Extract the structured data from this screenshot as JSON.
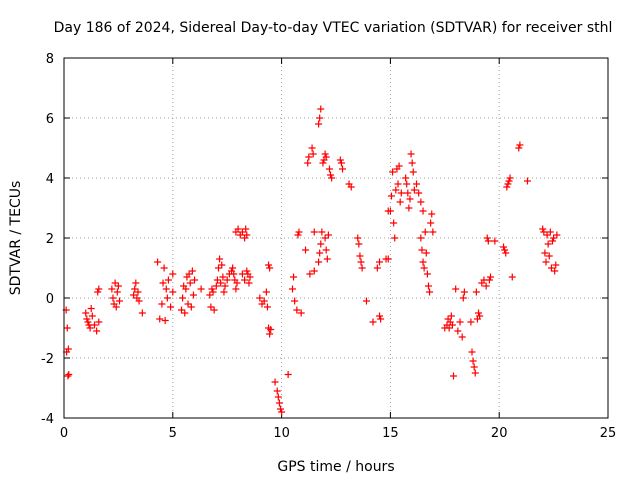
{
  "chart_data": {
    "type": "scatter",
    "title": "Day 186 of 2024, Sidereal Day-to-day VTEC variation (SDTVAR) for receiver sthl",
    "xlabel": "GPS time / hours",
    "ylabel": "SDTVAR / TECUs",
    "xlim": [
      0,
      25
    ],
    "ylim": [
      -4,
      8
    ],
    "x_ticks": [
      0,
      5,
      10,
      15,
      20,
      25
    ],
    "x_tick_labels": [
      "0",
      "5",
      "10",
      "15",
      "20",
      "25"
    ],
    "y_ticks": [
      -4,
      -2,
      0,
      2,
      4,
      6,
      8
    ],
    "y_tick_labels": [
      "-4",
      "-2",
      "0",
      "2",
      "4",
      "6",
      "8"
    ],
    "grid": true,
    "marker": "plus",
    "series": [
      {
        "name": "SDTVAR",
        "color": "#ff0000",
        "points": [
          [
            0.1,
            -0.4
          ],
          [
            0.15,
            -1.0
          ],
          [
            0.2,
            -1.7
          ],
          [
            0.12,
            -1.8
          ],
          [
            0.18,
            -2.6
          ],
          [
            0.22,
            -2.55
          ],
          [
            1.0,
            -0.5
          ],
          [
            1.05,
            -0.7
          ],
          [
            1.1,
            -0.8
          ],
          [
            1.15,
            -0.9
          ],
          [
            1.2,
            -1.0
          ],
          [
            1.25,
            -0.35
          ],
          [
            1.3,
            -0.6
          ],
          [
            1.4,
            -0.9
          ],
          [
            1.5,
            -1.1
          ],
          [
            1.55,
            0.2
          ],
          [
            1.6,
            0.3
          ],
          [
            1.6,
            -0.8
          ],
          [
            2.2,
            0.3
          ],
          [
            2.25,
            0.0
          ],
          [
            2.3,
            -0.2
          ],
          [
            2.35,
            0.5
          ],
          [
            2.4,
            -0.3
          ],
          [
            2.45,
            0.2
          ],
          [
            2.5,
            0.4
          ],
          [
            2.55,
            -0.1
          ],
          [
            3.2,
            0.1
          ],
          [
            3.25,
            0.3
          ],
          [
            3.3,
            0.5
          ],
          [
            3.35,
            0.0
          ],
          [
            3.4,
            0.2
          ],
          [
            3.45,
            -0.1
          ],
          [
            3.6,
            -0.5
          ],
          [
            4.3,
            1.2
          ],
          [
            4.4,
            -0.7
          ],
          [
            4.5,
            -0.2
          ],
          [
            4.55,
            0.5
          ],
          [
            4.6,
            1.0
          ],
          [
            4.65,
            -0.75
          ],
          [
            4.7,
            0.3
          ],
          [
            4.75,
            0.0
          ],
          [
            4.8,
            0.6
          ],
          [
            4.9,
            -0.3
          ],
          [
            5.0,
            0.8
          ],
          [
            5.0,
            0.2
          ],
          [
            5.4,
            -0.4
          ],
          [
            5.45,
            0.0
          ],
          [
            5.5,
            0.4
          ],
          [
            5.55,
            -0.5
          ],
          [
            5.6,
            0.3
          ],
          [
            5.65,
            0.7
          ],
          [
            5.7,
            -0.2
          ],
          [
            5.75,
            0.8
          ],
          [
            5.8,
            0.5
          ],
          [
            5.85,
            -0.3
          ],
          [
            5.9,
            0.9
          ],
          [
            5.95,
            0.1
          ],
          [
            6.0,
            0.6
          ],
          [
            6.3,
            0.3
          ],
          [
            6.7,
            0.1
          ],
          [
            6.75,
            -0.3
          ],
          [
            6.8,
            0.3
          ],
          [
            6.85,
            0.2
          ],
          [
            6.9,
            -0.4
          ],
          [
            7.0,
            0.4
          ],
          [
            7.05,
            0.6
          ],
          [
            7.1,
            1.0
          ],
          [
            7.15,
            1.3
          ],
          [
            7.2,
            0.5
          ],
          [
            7.25,
            1.1
          ],
          [
            7.3,
            0.7
          ],
          [
            7.35,
            0.2
          ],
          [
            7.4,
            0.4
          ],
          [
            7.5,
            0.6
          ],
          [
            7.6,
            0.8
          ],
          [
            7.7,
            0.9
          ],
          [
            7.75,
            1.0
          ],
          [
            7.8,
            0.8
          ],
          [
            7.85,
            0.6
          ],
          [
            7.9,
            0.3
          ],
          [
            7.95,
            0.5
          ],
          [
            7.9,
            2.2
          ],
          [
            8.0,
            2.3
          ],
          [
            8.1,
            2.1
          ],
          [
            8.2,
            2.2
          ],
          [
            8.3,
            2.0
          ],
          [
            8.35,
            2.3
          ],
          [
            8.4,
            2.1
          ],
          [
            8.45,
            0.8
          ],
          [
            8.5,
            0.5
          ],
          [
            8.55,
            0.7
          ],
          [
            8.2,
            0.8
          ],
          [
            8.3,
            0.6
          ],
          [
            8.4,
            0.9
          ],
          [
            9.0,
            0.0
          ],
          [
            9.1,
            -0.2
          ],
          [
            9.2,
            -0.1
          ],
          [
            9.3,
            0.2
          ],
          [
            9.35,
            -0.3
          ],
          [
            9.4,
            1.1
          ],
          [
            9.45,
            1.0
          ],
          [
            9.4,
            -1.0
          ],
          [
            9.45,
            -1.2
          ],
          [
            9.5,
            -1.05
          ],
          [
            9.7,
            -2.8
          ],
          [
            9.8,
            -3.1
          ],
          [
            9.85,
            -3.3
          ],
          [
            9.9,
            -3.5
          ],
          [
            9.95,
            -3.7
          ],
          [
            10.0,
            -3.8
          ],
          [
            10.3,
            -2.55
          ],
          [
            10.5,
            0.3
          ],
          [
            10.55,
            0.7
          ],
          [
            10.6,
            -0.1
          ],
          [
            10.7,
            -0.4
          ],
          [
            10.75,
            2.1
          ],
          [
            10.8,
            2.2
          ],
          [
            10.9,
            -0.5
          ],
          [
            11.1,
            1.6
          ],
          [
            11.2,
            4.5
          ],
          [
            11.25,
            4.7
          ],
          [
            11.3,
            0.8
          ],
          [
            11.4,
            5.0
          ],
          [
            11.45,
            4.8
          ],
          [
            11.5,
            2.2
          ],
          [
            11.5,
            0.9
          ],
          [
            11.7,
            5.8
          ],
          [
            11.75,
            6.0
          ],
          [
            11.8,
            6.3
          ],
          [
            11.7,
            1.2
          ],
          [
            11.75,
            1.5
          ],
          [
            11.8,
            1.8
          ],
          [
            11.85,
            2.2
          ],
          [
            11.9,
            4.5
          ],
          [
            11.95,
            4.6
          ],
          [
            12.0,
            4.8
          ],
          [
            12.05,
            4.7
          ],
          [
            12.0,
            2.0
          ],
          [
            12.05,
            1.6
          ],
          [
            12.1,
            1.3
          ],
          [
            12.15,
            2.1
          ],
          [
            12.2,
            4.3
          ],
          [
            12.25,
            4.1
          ],
          [
            12.3,
            4.0
          ],
          [
            12.7,
            4.6
          ],
          [
            12.75,
            4.5
          ],
          [
            12.8,
            4.3
          ],
          [
            13.1,
            3.8
          ],
          [
            13.2,
            3.7
          ],
          [
            13.5,
            2.0
          ],
          [
            13.55,
            1.8
          ],
          [
            13.6,
            1.4
          ],
          [
            13.65,
            1.2
          ],
          [
            13.7,
            1.0
          ],
          [
            13.9,
            -0.1
          ],
          [
            14.2,
            -0.8
          ],
          [
            14.4,
            1.0
          ],
          [
            14.5,
            1.2
          ],
          [
            14.5,
            -0.6
          ],
          [
            14.55,
            -0.7
          ],
          [
            14.8,
            1.3
          ],
          [
            14.9,
            1.3
          ],
          [
            14.9,
            2.9
          ],
          [
            15.0,
            2.9
          ],
          [
            15.05,
            3.4
          ],
          [
            15.1,
            4.2
          ],
          [
            15.15,
            2.5
          ],
          [
            15.2,
            2.0
          ],
          [
            15.25,
            3.6
          ],
          [
            15.3,
            4.3
          ],
          [
            15.35,
            3.8
          ],
          [
            15.4,
            4.4
          ],
          [
            15.45,
            3.2
          ],
          [
            15.5,
            3.5
          ],
          [
            15.7,
            4.0
          ],
          [
            15.75,
            3.8
          ],
          [
            15.8,
            3.5
          ],
          [
            15.85,
            3.0
          ],
          [
            15.9,
            3.3
          ],
          [
            15.95,
            4.8
          ],
          [
            16.0,
            4.5
          ],
          [
            16.05,
            4.2
          ],
          [
            16.1,
            3.6
          ],
          [
            16.2,
            3.8
          ],
          [
            16.3,
            3.5
          ],
          [
            16.4,
            3.2
          ],
          [
            16.5,
            2.9
          ],
          [
            16.4,
            2.0
          ],
          [
            16.45,
            1.6
          ],
          [
            16.5,
            1.2
          ],
          [
            16.55,
            1.0
          ],
          [
            16.6,
            2.2
          ],
          [
            16.65,
            1.5
          ],
          [
            16.7,
            0.8
          ],
          [
            16.75,
            0.4
          ],
          [
            16.8,
            0.2
          ],
          [
            16.85,
            2.5
          ],
          [
            16.9,
            2.8
          ],
          [
            16.95,
            2.2
          ],
          [
            17.5,
            -1.0
          ],
          [
            17.6,
            -0.9
          ],
          [
            17.65,
            -0.7
          ],
          [
            17.7,
            -1.0
          ],
          [
            17.75,
            -0.8
          ],
          [
            17.8,
            -0.6
          ],
          [
            17.85,
            -0.9
          ],
          [
            17.9,
            -2.6
          ],
          [
            18.0,
            0.3
          ],
          [
            18.1,
            -1.1
          ],
          [
            18.2,
            -0.8
          ],
          [
            18.3,
            -1.3
          ],
          [
            18.35,
            0.0
          ],
          [
            18.4,
            0.2
          ],
          [
            18.7,
            -0.8
          ],
          [
            18.75,
            -1.8
          ],
          [
            18.8,
            -2.1
          ],
          [
            18.85,
            -2.3
          ],
          [
            18.9,
            -2.5
          ],
          [
            18.95,
            0.2
          ],
          [
            19.0,
            -0.7
          ],
          [
            19.05,
            -0.5
          ],
          [
            19.1,
            -0.6
          ],
          [
            19.2,
            0.5
          ],
          [
            19.3,
            0.6
          ],
          [
            19.4,
            0.4
          ],
          [
            19.45,
            2.0
          ],
          [
            19.5,
            1.9
          ],
          [
            19.55,
            0.6
          ],
          [
            19.6,
            0.7
          ],
          [
            19.8,
            1.9
          ],
          [
            20.2,
            1.7
          ],
          [
            20.25,
            1.6
          ],
          [
            20.3,
            1.5
          ],
          [
            20.35,
            3.7
          ],
          [
            20.4,
            3.8
          ],
          [
            20.45,
            3.9
          ],
          [
            20.5,
            4.0
          ],
          [
            20.6,
            0.7
          ],
          [
            20.9,
            5.0
          ],
          [
            20.95,
            5.1
          ],
          [
            21.3,
            3.9
          ],
          [
            22.0,
            2.3
          ],
          [
            22.05,
            2.2
          ],
          [
            22.1,
            1.5
          ],
          [
            22.15,
            1.2
          ],
          [
            22.2,
            2.1
          ],
          [
            22.25,
            1.8
          ],
          [
            22.3,
            1.4
          ],
          [
            22.35,
            2.2
          ],
          [
            22.4,
            1.0
          ],
          [
            22.45,
            1.9
          ],
          [
            22.5,
            2.0
          ],
          [
            22.55,
            0.9
          ],
          [
            22.6,
            1.1
          ],
          [
            22.65,
            2.1
          ]
        ]
      }
    ]
  }
}
